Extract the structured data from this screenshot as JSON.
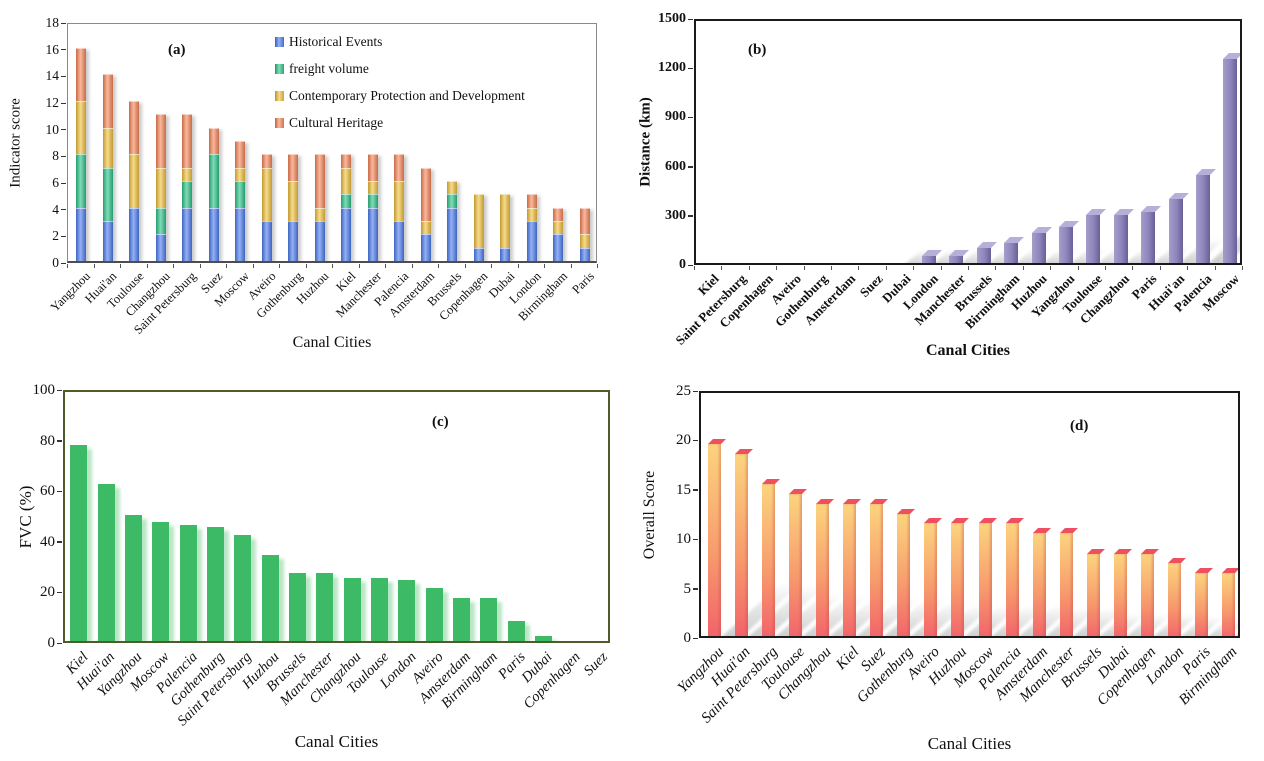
{
  "figure": {
    "background": "#ffffff",
    "shared_x_title": "Canal Cities"
  },
  "chart_data": [
    {
      "id": "a",
      "panel_label": "(a)",
      "type": "stacked-bar",
      "xlabel": "Canal Cities",
      "ylabel": "Indicator score",
      "ylim": [
        0,
        18
      ],
      "yticks": [
        0,
        2,
        4,
        6,
        8,
        10,
        12,
        14,
        16,
        18
      ],
      "grid": false,
      "legend_position": "top-right-inside",
      "categories": [
        "Yangzhou",
        "Huai'an",
        "Toulouse",
        "Changzhou",
        "Saint Petersburg",
        "Suez",
        "Moscow",
        "Aveiro",
        "Gothenburg",
        "Huzhou",
        "Kiel",
        "Manchester",
        "Palencia",
        "Amsterdam",
        "Brussels",
        "Copenhagen",
        "Dubai",
        "London",
        "Birmingham",
        "Paris"
      ],
      "series": [
        {
          "name": "Historical Events",
          "color": "#4d7df0",
          "values": [
            4,
            3,
            4,
            2,
            4,
            4,
            4,
            3,
            3,
            3,
            4,
            4,
            3,
            2,
            4,
            1,
            1,
            3,
            2,
            1
          ]
        },
        {
          "name": "freight volume",
          "color": "#2dc489",
          "values": [
            4,
            4,
            0,
            2,
            2,
            4,
            2,
            0,
            0,
            0,
            1,
            1,
            0,
            0,
            1,
            0,
            0,
            0,
            0,
            0
          ]
        },
        {
          "name": "Contemporary Protection and Development",
          "color": "#f2c23e",
          "values": [
            4,
            3,
            4,
            3,
            1,
            0,
            1,
            4,
            3,
            1,
            2,
            1,
            3,
            1,
            1,
            4,
            4,
            1,
            1,
            1
          ]
        },
        {
          "name": "Cultural Heritage",
          "color": "#f8875a",
          "values": [
            4,
            4,
            4,
            4,
            4,
            2,
            2,
            1,
            2,
            4,
            1,
            2,
            2,
            4,
            0,
            0,
            0,
            1,
            1,
            2
          ]
        }
      ]
    },
    {
      "id": "b",
      "panel_label": "(b)",
      "type": "bar",
      "xlabel": "Canal Cities",
      "ylabel": "Distance (km)",
      "ylim": [
        0,
        1500
      ],
      "yticks": [
        0,
        300,
        600,
        900,
        1200,
        1500
      ],
      "grid": false,
      "bar_color": "#8d84bb",
      "categories": [
        "Kiel",
        "Saint Petersburg",
        "Copenhagen",
        "Aveiro",
        "Gothenburg",
        "Amsterdam",
        "Suez",
        "Dubai",
        "London",
        "Manchester",
        "Brussels",
        "Birmingham",
        "Huzhou",
        "Yangzhou",
        "Toulouse",
        "Changzhou",
        "Paris",
        "Huai'an",
        "Palencia",
        "Moscow"
      ],
      "values": [
        0,
        0,
        0,
        0,
        0,
        0,
        0,
        0,
        70,
        70,
        115,
        145,
        205,
        245,
        315,
        320,
        335,
        415,
        560,
        1270
      ]
    },
    {
      "id": "c",
      "panel_label": "(c)",
      "type": "bar",
      "xlabel": "Canal Cities",
      "ylabel": "FVC (%)",
      "ylim": [
        0,
        100
      ],
      "yticks": [
        0,
        20,
        40,
        60,
        80,
        100
      ],
      "grid": false,
      "bar_color": "#3cba65",
      "categories": [
        "Kiel",
        "Huai'an",
        "Yangzhou",
        "Moscow",
        "Palencia",
        "Gothenburg",
        "Saint Petersburg",
        "Huzhou",
        "Brussels",
        "Manchester",
        "Changzhou",
        "Toulouse",
        "London",
        "Aveiro",
        "Amsterdam",
        "Birmingham",
        "Paris",
        "Dubai",
        "Copenhagen",
        "Suez"
      ],
      "values": [
        79,
        63.5,
        51.5,
        48.5,
        47.5,
        46.5,
        43.5,
        35.5,
        28.5,
        28.5,
        26.5,
        26.5,
        25.5,
        22.5,
        18.5,
        18.5,
        9.5,
        3.5,
        0,
        0
      ]
    },
    {
      "id": "d",
      "panel_label": "(d)",
      "type": "bar",
      "xlabel": "Canal Cities",
      "ylabel": "Overall Score",
      "ylim": [
        0,
        25
      ],
      "yticks": [
        0,
        5,
        10,
        15,
        20,
        25
      ],
      "grid": false,
      "bar_gradient": [
        "#fcd47e",
        "#f79c6d",
        "#f2616a"
      ],
      "categories": [
        "Yangzhou",
        "Huai'an",
        "Saint Petersburg",
        "Toulouse",
        "Changzhou",
        "Kiel",
        "Suez",
        "Gothenburg",
        "Aveiro",
        "Huzhou",
        "Moscow",
        "Palencia",
        "Amsterdam",
        "Manchester",
        "Brussels",
        "Dubai",
        "Copenhagen",
        "London",
        "Paris",
        "Birmingham"
      ],
      "values": [
        19.8,
        18.8,
        15.8,
        14.8,
        13.8,
        13.8,
        13.8,
        12.8,
        11.8,
        11.8,
        11.8,
        11.8,
        10.8,
        10.8,
        8.7,
        8.7,
        8.7,
        7.8,
        6.8,
        6.8
      ]
    }
  ]
}
